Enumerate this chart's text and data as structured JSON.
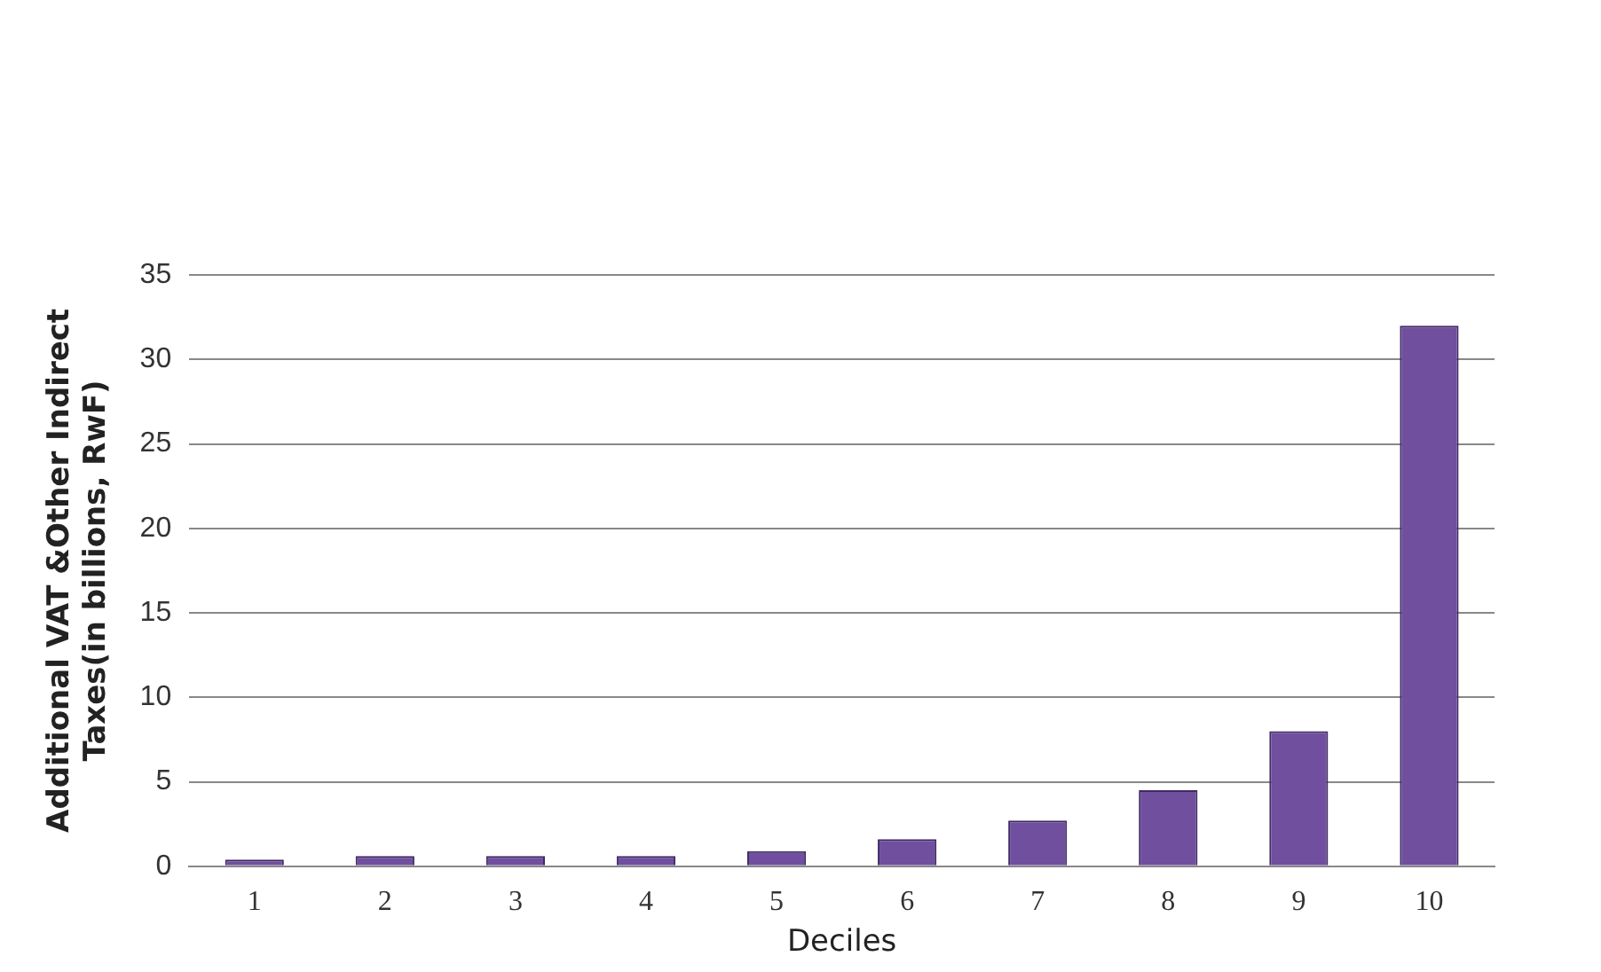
{
  "chart_data": {
    "type": "bar",
    "xlabel": "Deciles",
    "ylabel": "Additional VAT &Other Indirect Taxes(in billions, RwF)",
    "categories": [
      "1",
      "2",
      "3",
      "4",
      "5",
      "6",
      "7",
      "8",
      "9",
      "10"
    ],
    "values": [
      0.4,
      0.6,
      0.6,
      0.6,
      0.9,
      1.6,
      2.7,
      4.5,
      8.0,
      32.0
    ],
    "color": "#6f4f9e",
    "ylim": [
      0,
      35
    ],
    "yticks": [
      0,
      5,
      10,
      15,
      20,
      25,
      30,
      35
    ],
    "grid": "y",
    "legend": false
  }
}
